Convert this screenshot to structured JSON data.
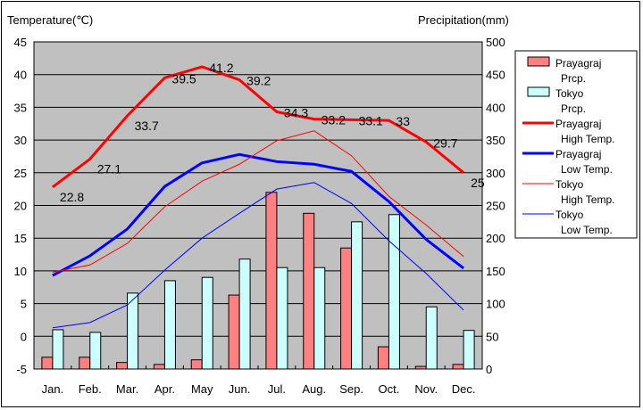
{
  "chart_data": {
    "type": "bar",
    "y_left_label": "Temperature(℃)",
    "y_right_label": "Precipitation(mm)",
    "categories": [
      "Jan.",
      "Feb.",
      "Mar.",
      "Apr.",
      "May",
      "Jun.",
      "Jul.",
      "Aug.",
      "Sep.",
      "Oct.",
      "Nov.",
      "Dec."
    ],
    "ylim_left": [
      -5,
      45
    ],
    "ylim_right": [
      0,
      500
    ],
    "left_ticks": [
      "-5",
      "0",
      "5",
      "10",
      "15",
      "20",
      "25",
      "30",
      "35",
      "40",
      "45"
    ],
    "right_ticks": [
      "0",
      "50",
      "100",
      "150",
      "200",
      "250",
      "300",
      "350",
      "400",
      "450",
      "500"
    ],
    "grid": true,
    "legend_position": "right",
    "bar_series": [
      {
        "name": "Prayagraj Prcp.",
        "legend": [
          "Prayagraj",
          "Prcp."
        ],
        "color": "#ff8080",
        "values": [
          18,
          18,
          10,
          7,
          14,
          113,
          270,
          238,
          185,
          34,
          4,
          7
        ]
      },
      {
        "name": "Tokyo Prcp.",
        "legend": [
          "Tokyo",
          "Prcp."
        ],
        "color": "#ccffff",
        "values": [
          60,
          56,
          116,
          135,
          140,
          168,
          155,
          155,
          225,
          236,
          95,
          59
        ]
      }
    ],
    "line_series": [
      {
        "name": "Prayagraj High Temp.",
        "legend": [
          "Prayagraj",
          "High Temp."
        ],
        "color": "#ff0000",
        "width": 3,
        "values": [
          22.8,
          27.1,
          33.7,
          39.5,
          41.2,
          39.2,
          34.3,
          33.2,
          33.1,
          33,
          29.7,
          25
        ],
        "labels": [
          "22.8",
          "27.1",
          "33.7",
          "39.5",
          "41.2",
          "39.2",
          "34.3",
          "33.2",
          "33.1",
          "33",
          "29.7",
          "25"
        ]
      },
      {
        "name": "Prayagraj Low Temp.",
        "legend": [
          "Prayagraj",
          "Low Temp."
        ],
        "color": "#0000ff",
        "width": 3,
        "values": [
          9.3,
          12.3,
          16.4,
          22.9,
          26.5,
          27.8,
          26.7,
          26.3,
          25.2,
          20.6,
          14.8,
          10.4
        ]
      },
      {
        "name": "Tokyo High Temp.",
        "legend": [
          "Tokyo",
          "High Temp."
        ],
        "color": "#ff0000",
        "width": 1,
        "values": [
          9.8,
          10.9,
          14.2,
          19.8,
          23.7,
          26.3,
          29.9,
          31.4,
          27.6,
          21.4,
          17.0,
          12.2
        ]
      },
      {
        "name": "Tokyo Low Temp.",
        "legend": [
          "Tokyo",
          "Low Temp."
        ],
        "color": "#0000ff",
        "width": 1,
        "values": [
          1.3,
          2.1,
          4.8,
          10.1,
          15.0,
          18.8,
          22.5,
          23.5,
          20.3,
          14.6,
          9.6,
          4.0
        ]
      }
    ]
  }
}
